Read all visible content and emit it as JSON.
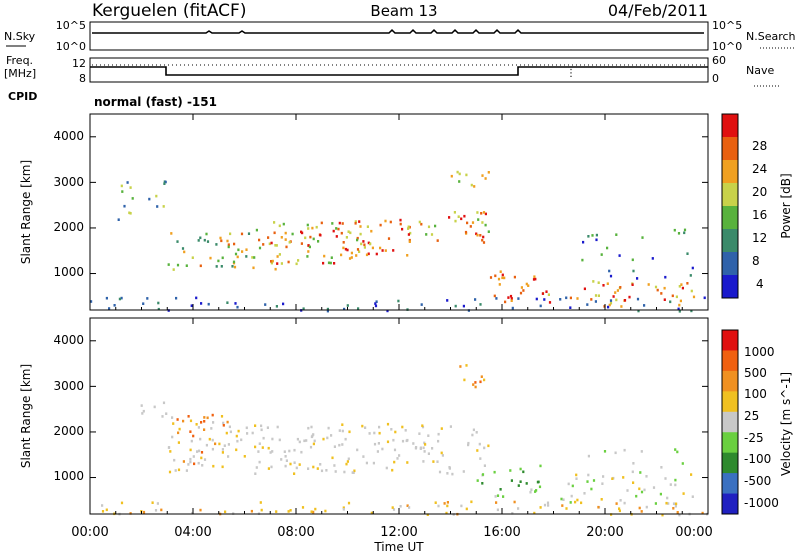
{
  "header": {
    "station": "Kerguelen (fitACF)",
    "beam": "Beam 13",
    "date": "04/Feb/2011"
  },
  "noise_panel": {
    "left_label": "N.Sky",
    "right_label": "N.Search",
    "left_ticks": [
      "10^5",
      "10^0"
    ],
    "right_ticks": [
      "10^5",
      "10^0"
    ]
  },
  "freq_panel": {
    "left_label_1": "Freq.",
    "left_label_2": "[MHz]",
    "right_label": "Nave",
    "left_ticks": [
      "12",
      "8"
    ],
    "right_ticks": [
      "60",
      "0"
    ]
  },
  "cpid": {
    "label": "CPID",
    "value": "normal (fast) -151"
  },
  "colors": {
    "power_scale": [
      "#1a1acc",
      "#2f62aa",
      "#3a8a6a",
      "#58b23d",
      "#c8d24a",
      "#f0a020",
      "#e86010",
      "#e01010"
    ],
    "velocity_scale": [
      "#2020c0",
      "#3a70c0",
      "#2e8a2e",
      "#6ad040",
      "#c8c8c8",
      "#f0c020",
      "#f09020",
      "#f06010",
      "#e01010"
    ]
  },
  "chart_data": [
    {
      "type": "heatmap",
      "title": "",
      "xlabel": "",
      "ylabel": "Slant Range [km]",
      "x_ticks": [
        "00:00",
        "04:00",
        "08:00",
        "12:00",
        "16:00",
        "20:00",
        "00:00"
      ],
      "y_ticks": [
        "1000",
        "2000",
        "3000",
        "4000"
      ],
      "ylim": [
        200,
        4500
      ],
      "colorbar": {
        "label": "Power [dB]",
        "ticks": [
          "28",
          "24",
          "20",
          "16",
          "12",
          "8",
          "4"
        ]
      }
    },
    {
      "type": "heatmap",
      "title": "",
      "xlabel": "Time UT",
      "ylabel": "Slant Range [km]",
      "x_ticks": [
        "00:00",
        "04:00",
        "08:00",
        "12:00",
        "16:00",
        "20:00",
        "00:00"
      ],
      "y_ticks": [
        "1000",
        "2000",
        "3000",
        "4000"
      ],
      "ylim": [
        200,
        4500
      ],
      "colorbar": {
        "label": "Velocity [m s^-1]",
        "ticks": [
          "1000",
          "500",
          "100",
          "25",
          "-25",
          "-100",
          "-500",
          "-1000"
        ]
      }
    }
  ]
}
